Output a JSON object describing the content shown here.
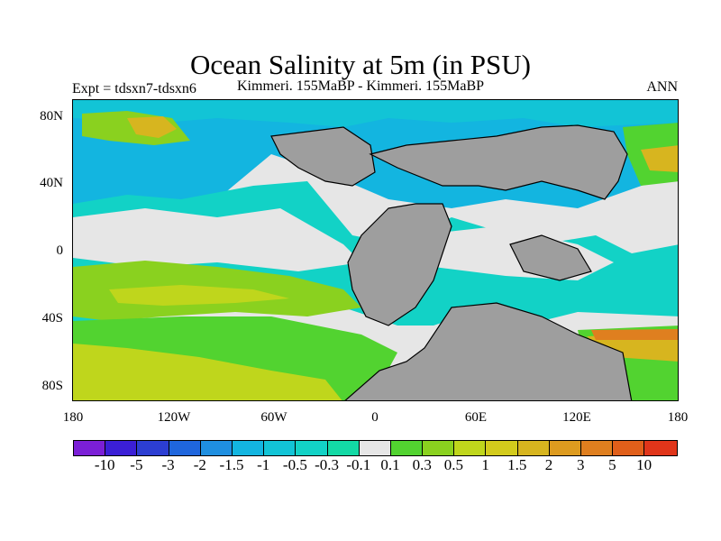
{
  "title": "Ocean Salinity at 5m (in PSU)",
  "experiment": "Expt = tdsxn7-tdsxn6",
  "subtitle": "Kimmeri. 155MaBP - Kimmeri. 155MaBP",
  "season": "ANN",
  "map": {
    "land_color": "#9e9e9e",
    "lat_ticks": [
      "80N",
      "40N",
      "0",
      "40S",
      "80S"
    ],
    "lon_ticks": [
      "180",
      "120W",
      "60W",
      "0",
      "60E",
      "120E",
      "180"
    ]
  },
  "colorbar": {
    "colors": [
      "#7b1fd6",
      "#3b1fd6",
      "#2c3ed2",
      "#1f66dd",
      "#1f8fe0",
      "#13b5e0",
      "#12c4d6",
      "#12d2c6",
      "#13d9a5",
      "#e6e6e6",
      "#52d330",
      "#8ad11f",
      "#bfd61c",
      "#d3cb1c",
      "#d7b51f",
      "#dd9b1f",
      "#df7f1f",
      "#e05f1a",
      "#e0351a"
    ],
    "labels": [
      "-10",
      "-5",
      "-3",
      "-2",
      "-1.5",
      "-1",
      "-0.5",
      "-0.3",
      "-0.1",
      "0.1",
      "0.3",
      "0.5",
      "1",
      "1.5",
      "2",
      "3",
      "5",
      "10"
    ]
  }
}
